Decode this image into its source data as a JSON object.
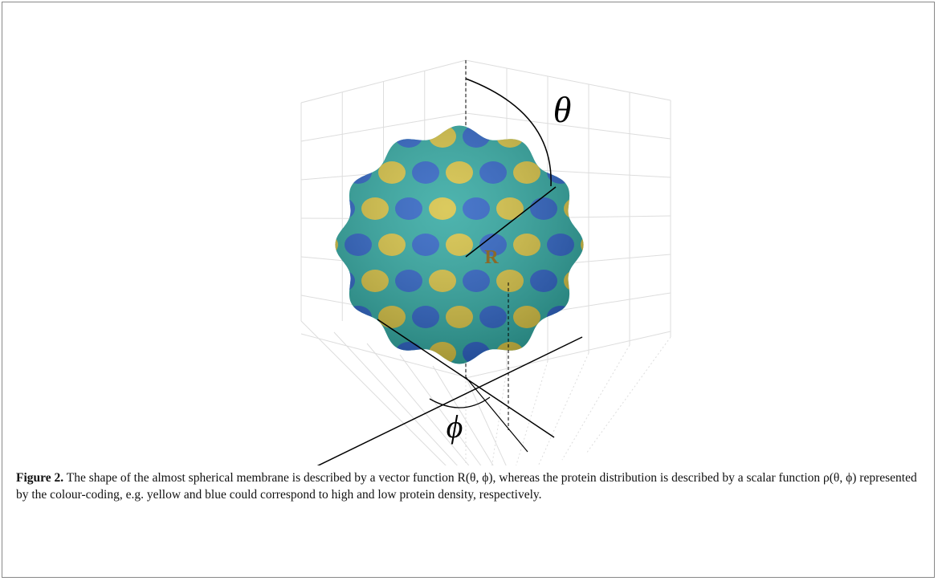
{
  "figure": {
    "labels": {
      "theta": "θ",
      "r": "R",
      "phi": "ϕ"
    }
  },
  "caption": {
    "label": "Figure 2.",
    "text": "The shape of the almost spherical membrane is described by a vector function R(θ, ϕ), whereas the protein distribution is described by a scalar function ρ(θ, ϕ) represented by the colour-coding, e.g.  yellow and blue could correspond to high and low protein density, respectively."
  }
}
